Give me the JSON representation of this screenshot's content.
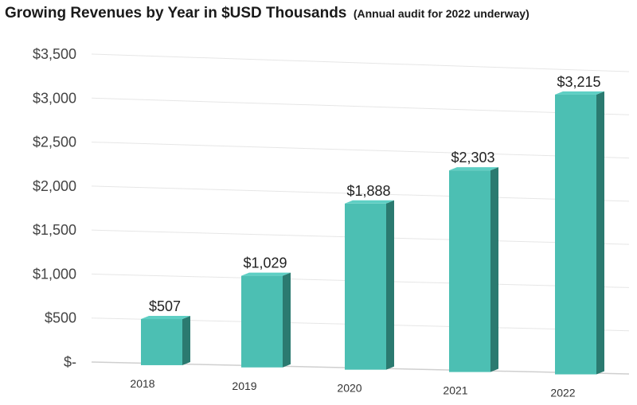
{
  "title": "Growing Revenues by Year in $USD Thousands",
  "subtitle": "(Annual audit for 2022 underway)",
  "chart_data": {
    "type": "bar",
    "categories": [
      "2018",
      "2019",
      "2020",
      "2021",
      "2022"
    ],
    "values": [
      507,
      1029,
      1888,
      2303,
      3215
    ],
    "data_labels": [
      "$507",
      "$1,029",
      "$1,888",
      "$2,303",
      "$3,215"
    ],
    "y_ticks": [
      0,
      500,
      1000,
      1500,
      2000,
      2500,
      3000,
      3500
    ],
    "y_tick_labels": [
      "$-",
      "$500",
      "$1,000",
      "$1,500",
      "$2,000",
      "$2,500",
      "$3,000",
      "$3,500"
    ],
    "ylim": [
      0,
      3500
    ],
    "grid": true,
    "legend": "none",
    "style": "3d",
    "colors": {
      "front": "#4cbfb3",
      "side": "#2b7a70",
      "top": "#5ecfc4",
      "grid": "#e6e6e6"
    }
  }
}
